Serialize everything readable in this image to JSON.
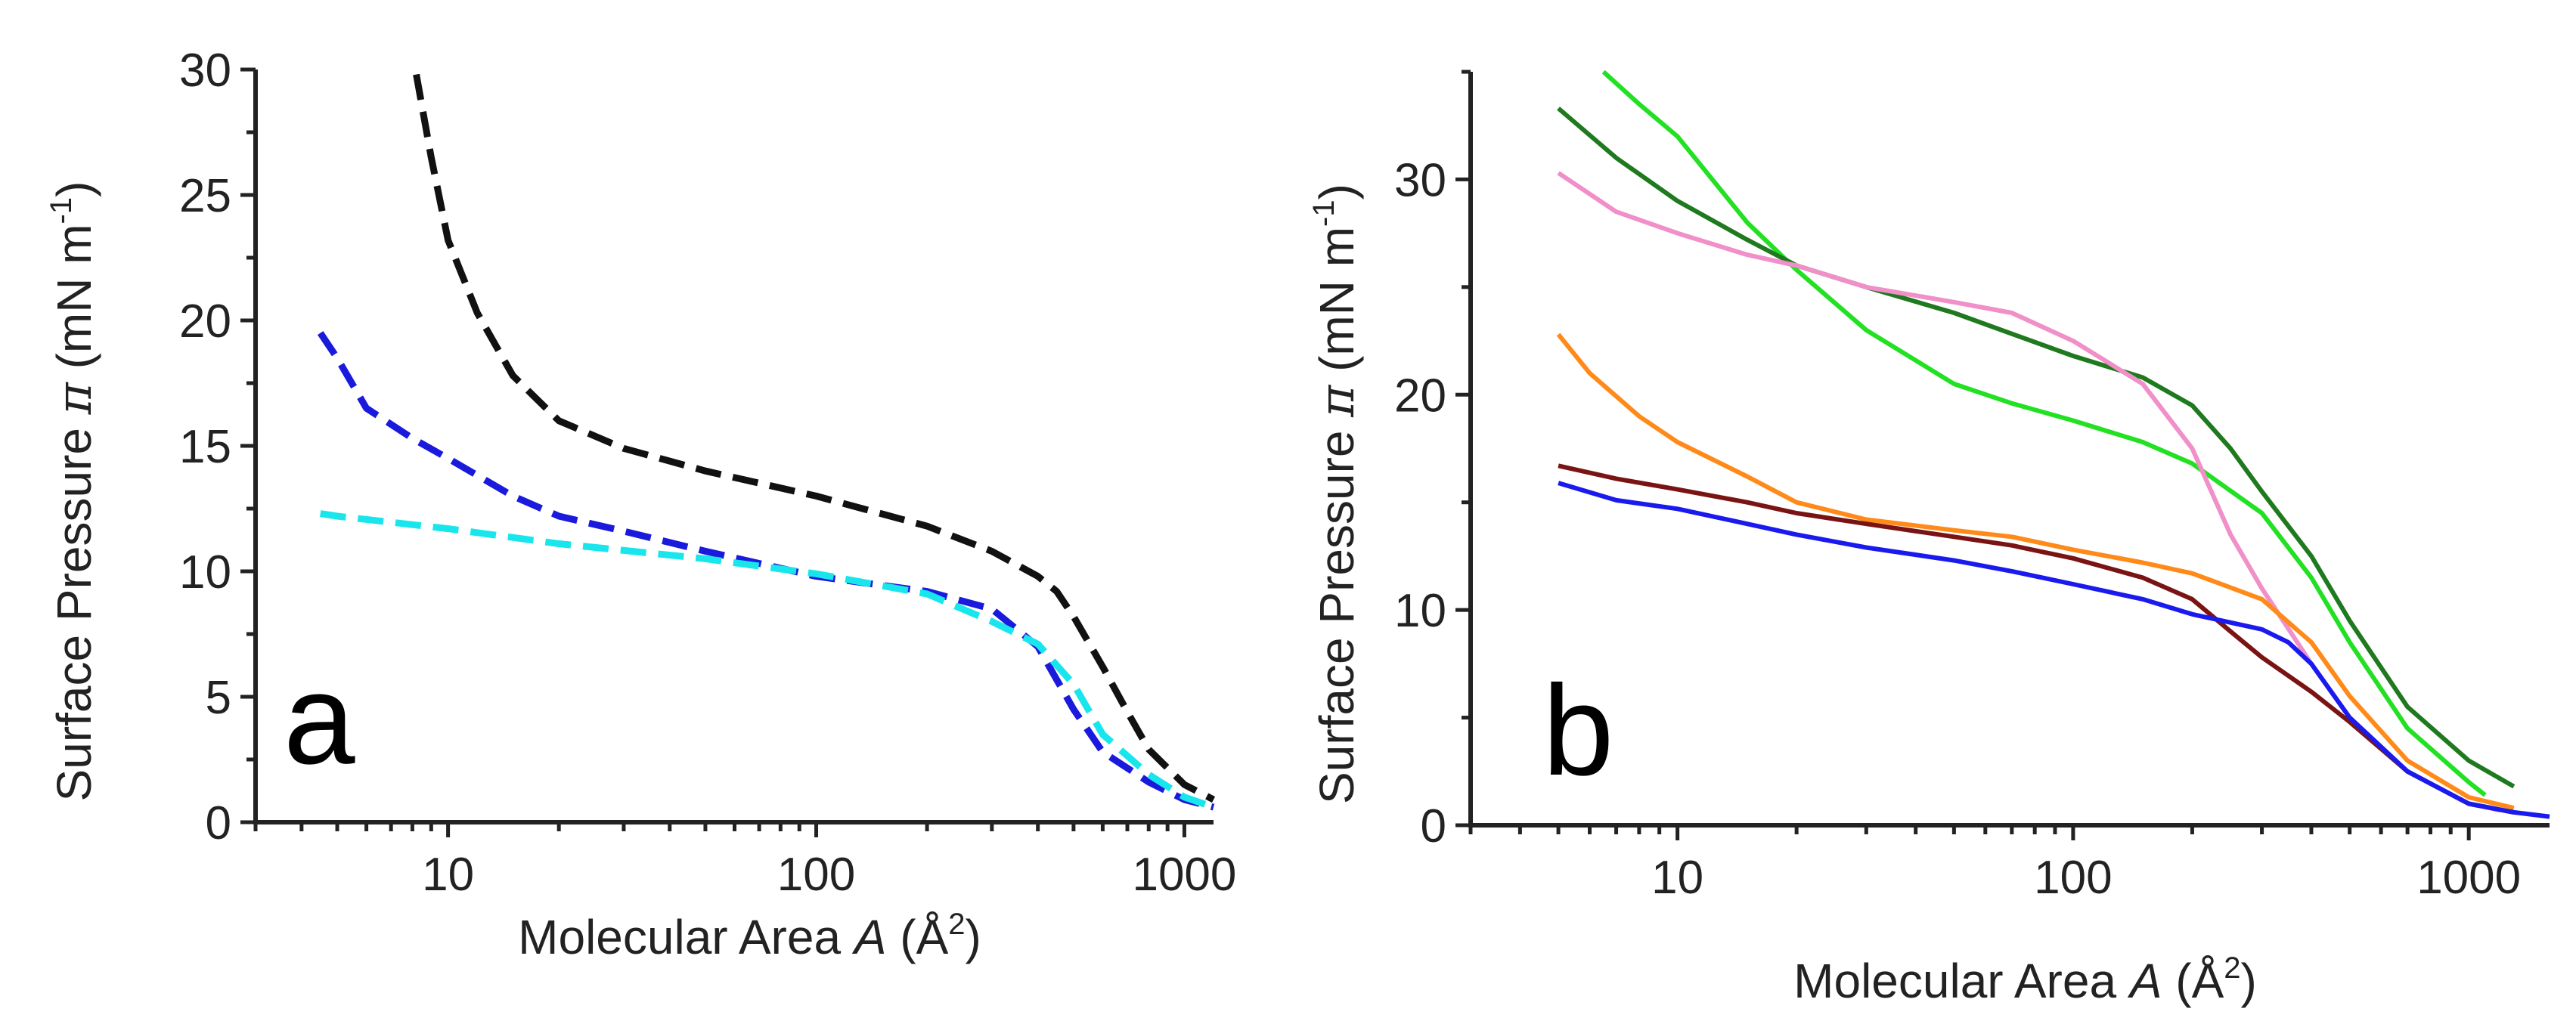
{
  "chart_data": [
    {
      "type": "line",
      "panel_label": "a",
      "xlabel": "Molecular Area",
      "xlabel_symbol": "A",
      "xlabel_unit": "(Å",
      "xlabel_unit_exp": "2",
      "xlabel_unit_close": ")",
      "ylabel": "Surface Pressure",
      "ylabel_symbol": "π",
      "ylabel_unit": "(mN m",
      "ylabel_unit_exp": "-1",
      "ylabel_unit_close": ")",
      "xscale": "log",
      "xlim": [
        3,
        1200
      ],
      "ylim": [
        0,
        30
      ],
      "xticks": [
        10,
        100,
        1000
      ],
      "xtick_labels": [
        "10",
        "100",
        "1000"
      ],
      "yticks": [
        0,
        5,
        10,
        15,
        20,
        25,
        30
      ],
      "ytick_labels": [
        "0",
        "5",
        "10",
        "15",
        "20",
        "25",
        "30"
      ],
      "series": [
        {
          "name": "black dashed",
          "color": "#111111",
          "style": "dashed",
          "x": [
            8.2,
            9,
            10,
            12,
            15,
            20,
            30,
            50,
            100,
            200,
            300,
            400,
            450,
            500,
            600,
            700,
            800,
            1000,
            1200
          ],
          "y": [
            29.8,
            26.5,
            23.2,
            20.3,
            17.8,
            16.0,
            14.9,
            14.0,
            13.0,
            11.8,
            10.8,
            9.8,
            9.2,
            8.2,
            6.2,
            4.4,
            2.9,
            1.5,
            0.9
          ]
        },
        {
          "name": "blue dashed",
          "color": "#1a1adc",
          "style": "dashed",
          "x": [
            4.5,
            5,
            6,
            8,
            10,
            15,
            20,
            30,
            50,
            100,
            200,
            300,
            400,
            500,
            600,
            800,
            1000,
            1200
          ],
          "y": [
            19.5,
            18.5,
            16.5,
            15.3,
            14.5,
            13.0,
            12.2,
            11.6,
            10.8,
            9.8,
            9.2,
            8.5,
            7.0,
            4.5,
            2.8,
            1.6,
            0.9,
            0.6
          ]
        },
        {
          "name": "cyan dashed",
          "color": "#19e6ec",
          "style": "dashed",
          "x": [
            4.5,
            5,
            10,
            20,
            50,
            100,
            200,
            300,
            400,
            500,
            600,
            800,
            1000,
            1200
          ],
          "y": [
            12.3,
            12.2,
            11.7,
            11.1,
            10.5,
            9.9,
            9.1,
            8.0,
            7.1,
            5.5,
            3.5,
            1.9,
            1.0,
            0.6
          ]
        }
      ]
    },
    {
      "type": "line",
      "panel_label": "b",
      "xlabel": "Molecular Area",
      "xlabel_symbol": "A",
      "xlabel_unit": "(Å",
      "xlabel_unit_exp": "2",
      "xlabel_unit_close": ")",
      "ylabel": "Surface Pressure",
      "ylabel_symbol": "π",
      "ylabel_unit": "(mN m",
      "ylabel_unit_exp": "-1",
      "ylabel_unit_close": ")",
      "xscale": "log",
      "xlim": [
        3,
        1600
      ],
      "ylim": [
        0,
        35
      ],
      "xticks": [
        10,
        100,
        1000
      ],
      "xtick_labels": [
        "10",
        "100",
        "1000"
      ],
      "yticks": [
        0,
        10,
        20,
        30
      ],
      "ytick_labels": [
        "0",
        "10",
        "20",
        "30"
      ],
      "series": [
        {
          "name": "green",
          "color": "#22e022",
          "style": "solid",
          "x": [
            6.5,
            8,
            10,
            15,
            20,
            30,
            50,
            70,
            100,
            150,
            200,
            300,
            400,
            500,
            700,
            1000,
            1100
          ],
          "y": [
            35,
            33.5,
            32.0,
            28.0,
            25.8,
            23.0,
            20.5,
            19.6,
            18.8,
            17.8,
            16.8,
            14.5,
            11.5,
            8.5,
            4.5,
            2.0,
            1.4
          ]
        },
        {
          "name": "dark green",
          "color": "#1f7a1f",
          "style": "solid",
          "x": [
            5,
            7,
            10,
            15,
            20,
            30,
            50,
            100,
            150,
            200,
            250,
            300,
            400,
            500,
            700,
            1000,
            1300
          ],
          "y": [
            33.3,
            31.0,
            29.0,
            27.2,
            26.0,
            25.0,
            23.8,
            21.8,
            20.8,
            19.5,
            17.5,
            15.5,
            12.5,
            9.5,
            5.5,
            3.0,
            1.8
          ]
        },
        {
          "name": "pink",
          "color": "#f08fc8",
          "style": "solid",
          "x": [
            5,
            7,
            10,
            15,
            20,
            30,
            50,
            70,
            100,
            150,
            200,
            250,
            300,
            400,
            500,
            700,
            1000,
            1200
          ],
          "y": [
            30.3,
            28.5,
            27.5,
            26.5,
            26.0,
            25.0,
            24.3,
            23.8,
            22.5,
            20.5,
            17.5,
            13.5,
            11.0,
            7.5,
            5.0,
            2.5,
            1.0,
            0.7
          ]
        },
        {
          "name": "orange",
          "color": "#ff8a1a",
          "style": "solid",
          "x": [
            5,
            6,
            8,
            10,
            15,
            20,
            30,
            50,
            70,
            100,
            150,
            200,
            300,
            400,
            500,
            700,
            1000,
            1300
          ],
          "y": [
            22.8,
            21.0,
            19.0,
            17.8,
            16.2,
            15.0,
            14.2,
            13.7,
            13.4,
            12.8,
            12.2,
            11.7,
            10.5,
            8.5,
            6.0,
            3.0,
            1.3,
            0.8
          ]
        },
        {
          "name": "dark red",
          "color": "#7a1414",
          "style": "solid",
          "x": [
            5,
            7,
            10,
            15,
            20,
            30,
            50,
            70,
            100,
            150,
            200,
            250,
            300,
            400,
            500,
            700,
            1000,
            1300
          ],
          "y": [
            16.7,
            16.1,
            15.6,
            15.0,
            14.5,
            14.0,
            13.4,
            13.0,
            12.4,
            11.5,
            10.5,
            9.0,
            7.8,
            6.2,
            4.8,
            2.5,
            1.0,
            0.6
          ]
        },
        {
          "name": "blue",
          "color": "#1a1aee",
          "style": "solid",
          "x": [
            5,
            7,
            10,
            15,
            20,
            30,
            50,
            70,
            100,
            150,
            200,
            300,
            350,
            400,
            500,
            700,
            1000,
            1300,
            1600
          ],
          "y": [
            15.9,
            15.1,
            14.7,
            14.0,
            13.5,
            12.9,
            12.3,
            11.8,
            11.2,
            10.5,
            9.8,
            9.1,
            8.5,
            7.5,
            5.0,
            2.5,
            1.0,
            0.6,
            0.4
          ]
        }
      ]
    }
  ]
}
